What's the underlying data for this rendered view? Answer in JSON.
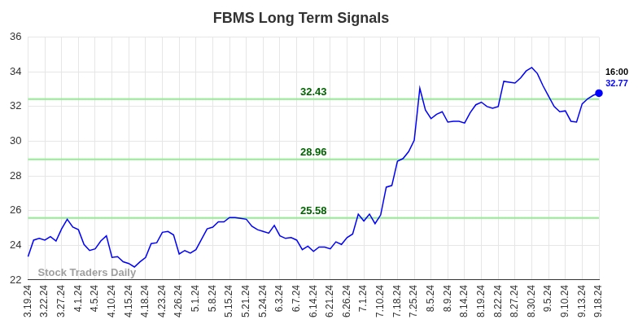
{
  "chart_data": {
    "type": "line",
    "title": "FBMS Long Term Signals",
    "categories": [
      "3.19.24",
      null,
      null,
      "3.22.24",
      null,
      null,
      "3.27.24",
      null,
      null,
      "4.1.24",
      null,
      null,
      "4.5.24",
      null,
      null,
      "4.10.24",
      null,
      null,
      "4.15.24",
      null,
      null,
      "4.18.24",
      null,
      null,
      "4.23.24",
      null,
      null,
      "4.26.24",
      null,
      null,
      "5.1.24",
      null,
      null,
      "5.8.24",
      null,
      null,
      "5.15.24",
      null,
      null,
      "5.21.24",
      null,
      null,
      "5.24.24",
      null,
      null,
      "6.3.24",
      null,
      null,
      "6.7.24",
      null,
      null,
      "6.14.24",
      null,
      null,
      "6.21.24",
      null,
      null,
      "6.26.24",
      null,
      null,
      "7.1.24",
      null,
      null,
      "7.10.24",
      null,
      null,
      "7.18.24",
      null,
      null,
      "7.25.24",
      null,
      null,
      "8.5.24",
      null,
      null,
      "8.9.24",
      null,
      null,
      "8.14.24",
      null,
      null,
      "8.19.24",
      null,
      null,
      "8.22.24",
      null,
      null,
      "8.27.24",
      null,
      null,
      "8.30.24",
      null,
      null,
      "9.5.24",
      null,
      null,
      "9.10.24",
      null,
      null,
      "9.13.24",
      null,
      null,
      "9.18.24"
    ],
    "values": [
      23.35,
      24.3,
      24.4,
      24.3,
      24.5,
      24.25,
      24.95,
      25.5,
      25.05,
      24.9,
      24.05,
      23.7,
      23.8,
      24.25,
      24.55,
      23.3,
      23.35,
      23.05,
      22.95,
      22.75,
      23.05,
      23.3,
      24.1,
      24.15,
      24.75,
      24.8,
      24.6,
      23.5,
      23.7,
      23.55,
      23.75,
      24.35,
      24.95,
      25.05,
      25.35,
      25.35,
      25.6,
      25.6,
      25.55,
      25.5,
      25.1,
      24.9,
      24.8,
      24.7,
      25.15,
      24.55,
      24.4,
      24.45,
      24.3,
      23.75,
      23.95,
      23.65,
      23.9,
      23.9,
      23.8,
      24.2,
      24.05,
      24.45,
      24.65,
      25.8,
      25.4,
      25.8,
      25.25,
      25.75,
      27.35,
      27.45,
      28.85,
      29.0,
      29.4,
      30.05,
      33.05,
      31.8,
      31.3,
      31.55,
      31.7,
      31.1,
      31.15,
      31.15,
      31.05,
      31.65,
      32.1,
      32.25,
      32.0,
      31.9,
      32.0,
      33.45,
      33.4,
      33.35,
      33.65,
      34.05,
      34.25,
      33.9,
      33.2,
      32.6,
      32.0,
      31.7,
      31.75,
      31.15,
      31.1,
      32.15,
      32.45,
      32.65,
      32.77
    ],
    "color": "#0000ff",
    "ylim": [
      22,
      36
    ],
    "yticks": [
      22,
      24,
      26,
      28,
      30,
      32,
      34,
      36
    ],
    "grid": true,
    "reference_lines": [
      32.43,
      28.96,
      25.58
    ],
    "end_label": "16:00",
    "watermark": "Stock Traders Daily"
  }
}
